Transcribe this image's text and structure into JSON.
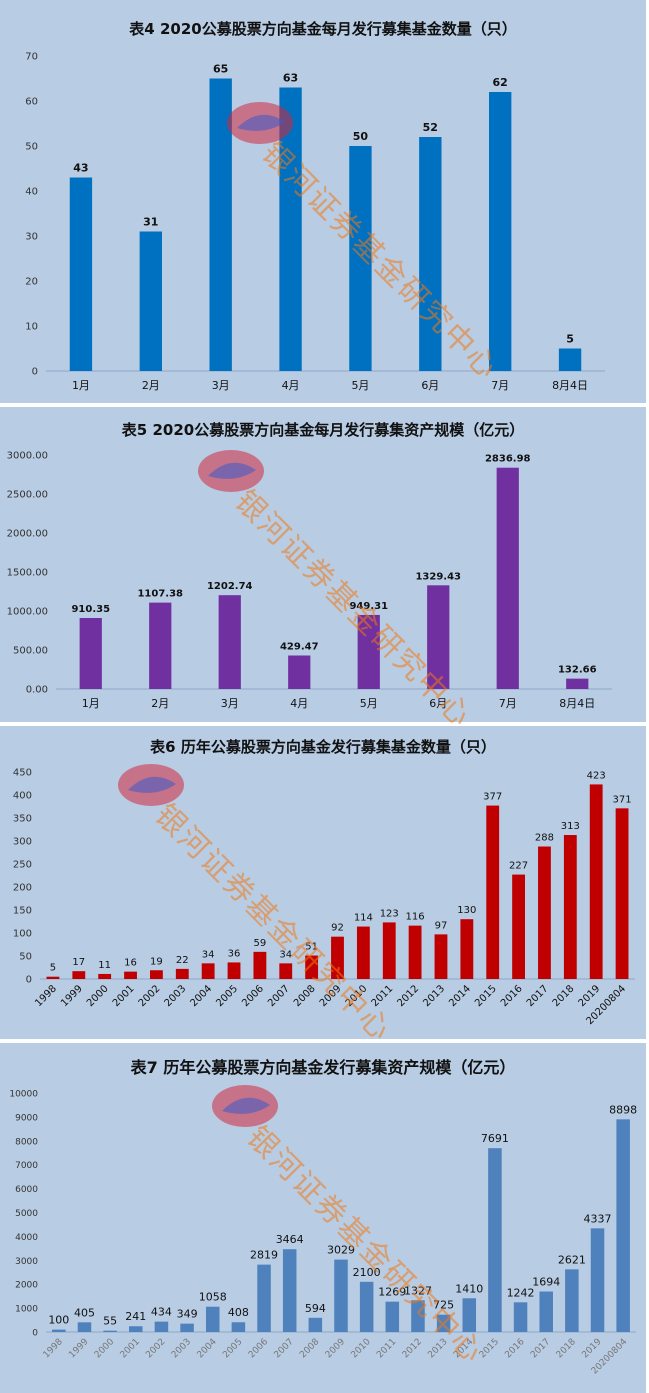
{
  "watermark": {
    "text": "银河证券基金研究中心",
    "logo": "galaxy-securities-logo"
  },
  "charts": [
    {
      "type": "bar",
      "title": "表4  2020公募股票方向基金每月发行募集基金数量（只）",
      "categories": [
        "1月",
        "2月",
        "3月",
        "4月",
        "5月",
        "6月",
        "7月",
        "8月4日"
      ],
      "values": [
        43,
        31,
        65,
        63,
        50,
        52,
        62,
        5
      ],
      "ylim": [
        0,
        70
      ],
      "yticks": [
        0,
        10,
        20,
        30,
        40,
        50,
        60,
        70
      ],
      "tick_decimals": 0,
      "label_decimals": 0,
      "color": "#0070c0",
      "bg": "#b8cce4",
      "x_rotate": false
    },
    {
      "type": "bar",
      "title": "表5  2020公募股票方向基金每月发行募集资产规模（亿元）",
      "categories": [
        "1月",
        "2月",
        "3月",
        "4月",
        "5月",
        "6月",
        "7月",
        "8月4日"
      ],
      "values": [
        910.35,
        1107.38,
        1202.74,
        429.47,
        949.31,
        1329.43,
        2836.98,
        132.66
      ],
      "ylim": [
        0,
        3000
      ],
      "yticks": [
        0,
        500,
        1000,
        1500,
        2000,
        2500,
        3000
      ],
      "tick_decimals": 2,
      "label_decimals": 2,
      "color": "#7030a0",
      "bg": "#b8cce4",
      "x_rotate": false
    },
    {
      "type": "bar",
      "title": "表6  历年公募股票方向基金发行募集基金数量（只）",
      "categories": [
        "1998",
        "1999",
        "2000",
        "2001",
        "2002",
        "2003",
        "2004",
        "2005",
        "2006",
        "2007",
        "2008",
        "2009",
        "2010",
        "2011",
        "2012",
        "2013",
        "2014",
        "2015",
        "2016",
        "2017",
        "2018",
        "2019",
        "20200804"
      ],
      "values": [
        5,
        17,
        11,
        16,
        19,
        22,
        34,
        36,
        59,
        34,
        51,
        92,
        114,
        123,
        116,
        97,
        130,
        377,
        227,
        288,
        313,
        423,
        371
      ],
      "ylim": [
        0,
        450
      ],
      "yticks": [
        0,
        50,
        100,
        150,
        200,
        250,
        300,
        350,
        400,
        450
      ],
      "tick_decimals": 0,
      "label_decimals": 0,
      "color": "#c00000",
      "bg": "#b8cce4",
      "x_rotate": true
    },
    {
      "type": "bar",
      "title": "表7  历年公募股票方向基金发行募集资产规模（亿元）",
      "categories": [
        "1998",
        "1999",
        "2000",
        "2001",
        "2002",
        "2003",
        "2004",
        "2005",
        "2006",
        "2007",
        "2008",
        "2009",
        "2010",
        "2011",
        "2012",
        "2013",
        "2014",
        "2015",
        "2016",
        "2017",
        "2018",
        "2019",
        "20200804"
      ],
      "values": [
        100,
        405,
        55,
        241,
        434,
        349,
        1058,
        408,
        2819,
        3464,
        594,
        3029,
        2100,
        1269,
        1327,
        725,
        1410,
        7691,
        1242,
        1694,
        2621,
        4337,
        8898
      ],
      "ylim": [
        0,
        10000
      ],
      "yticks": [
        0,
        1000,
        2000,
        3000,
        4000,
        5000,
        6000,
        7000,
        8000,
        9000,
        10000
      ],
      "tick_decimals": 0,
      "label_decimals": 0,
      "color": "#4f81bd",
      "bg": "#b8cce4",
      "x_rotate": true
    }
  ]
}
